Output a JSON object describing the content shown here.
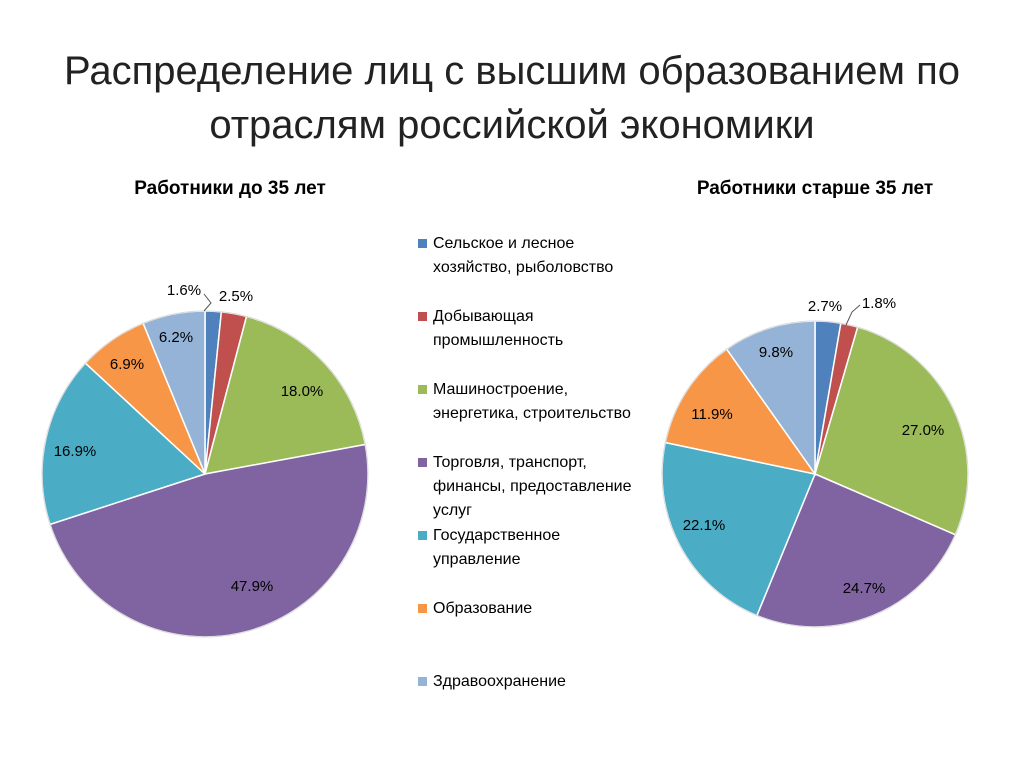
{
  "slide": {
    "title": "Распределение лиц с высшим образованием по отраслям российской экономики"
  },
  "legend": [
    {
      "label": "Сельское и лесное хозяйство, рыболовство",
      "color": "#4f81bd"
    },
    {
      "label": "Добывающая промышленность",
      "color": "#c0504d"
    },
    {
      "label": "Машиностроение, энергетика, строительство",
      "color": "#9bbb59"
    },
    {
      "label": "Торговля, транспорт, финансы, предоставление услуг",
      "color": "#8064a2"
    },
    {
      "label": "Государственное управление",
      "color": "#4bacc6"
    },
    {
      "label": "Образование",
      "color": "#f79646"
    },
    {
      "label": "Здравоохранение",
      "color": "#95b3d7"
    }
  ],
  "chart_data": [
    {
      "type": "pie",
      "title": "Работники до 35 лет",
      "categories": [
        "Сельское и лесное хозяйство, рыболовство",
        "Добывающая промышленность",
        "Машиностроение, энергетика, строительство",
        "Торговля, транспорт, финансы, предоставление услуг",
        "Государственное управление",
        "Образование",
        "Здравоохранение"
      ],
      "values": [
        1.6,
        2.5,
        18.0,
        47.9,
        16.9,
        6.9,
        6.2
      ],
      "data_labels": [
        "1.6%",
        "2.5%",
        "18.0%",
        "47.9%",
        "16.9%",
        "6.9%",
        "6.2%"
      ]
    },
    {
      "type": "pie",
      "title": "Работники старше 35 лет",
      "categories": [
        "Сельское и лесное хозяйство, рыболовство",
        "Добывающая промышленность",
        "Машиностроение, энергетика, строительство",
        "Торговля, транспорт, финансы, предоставление услуг",
        "Государственное управление",
        "Образование",
        "Здравоохранение"
      ],
      "values": [
        2.7,
        1.8,
        27.0,
        24.7,
        22.1,
        11.9,
        9.8
      ],
      "data_labels": [
        "2.7%",
        "1.8%",
        "27.0%",
        "24.7%",
        "22.1%",
        "11.9%",
        "9.8%"
      ]
    }
  ]
}
